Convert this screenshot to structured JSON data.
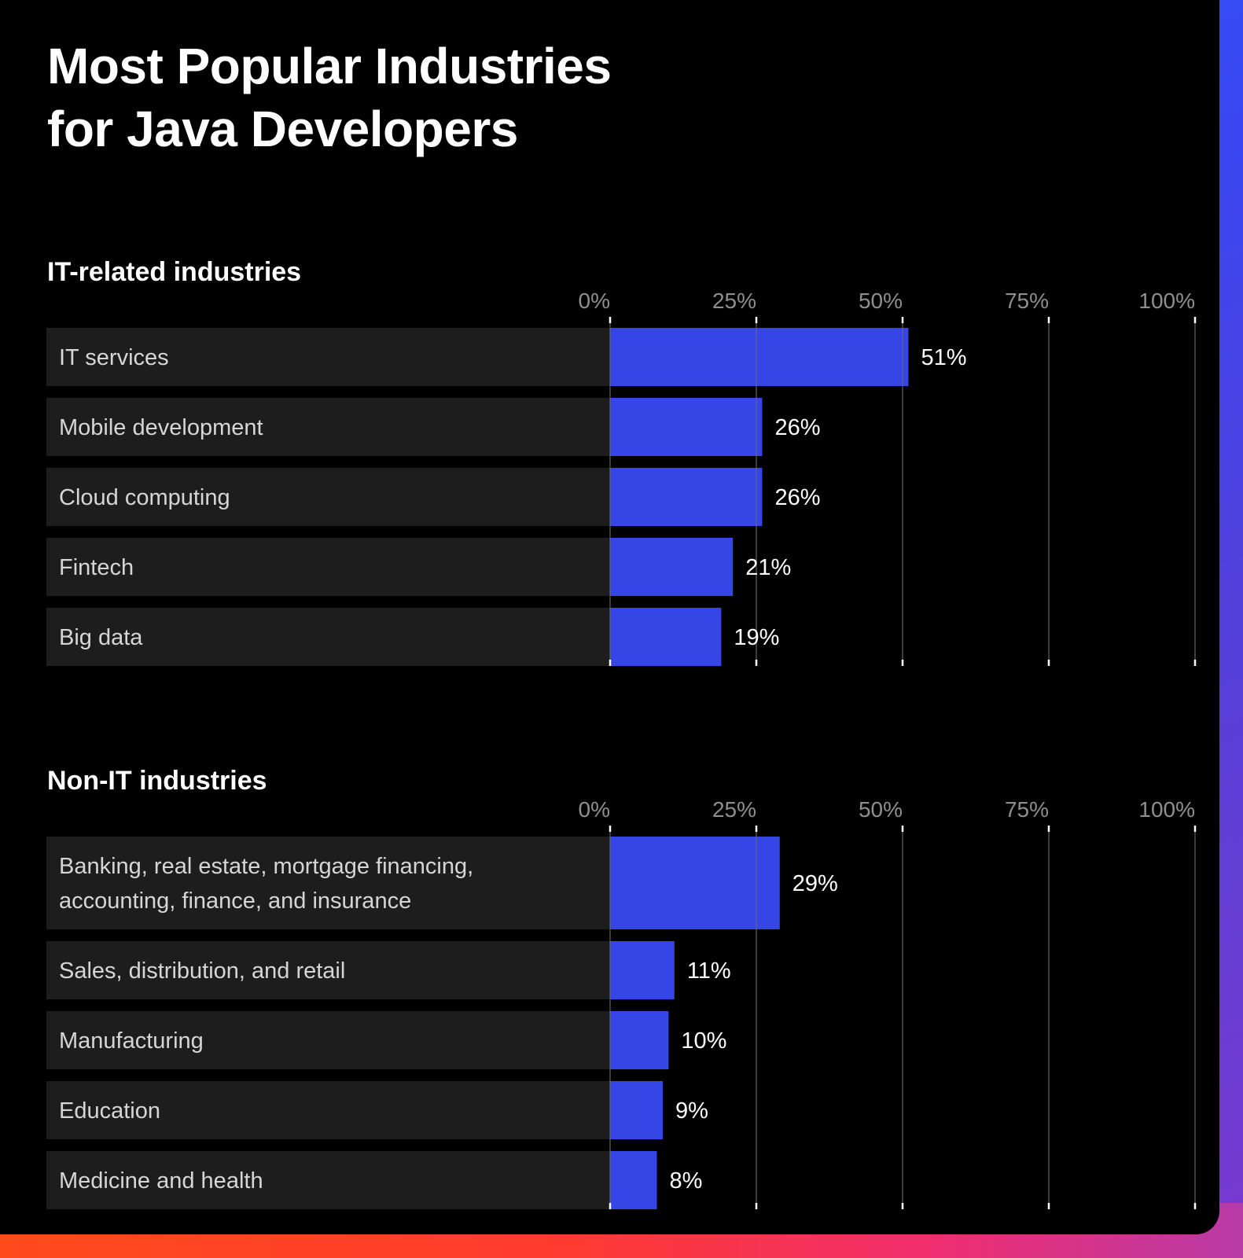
{
  "title_lines": [
    "Most Popular Industries",
    "for Java Developers"
  ],
  "colors": {
    "bar": "#3545e6",
    "row_bg": "#1d1d1d",
    "background": "#000000",
    "grid": "#6a6a6a"
  },
  "chart_data": [
    {
      "type": "bar",
      "orientation": "horizontal",
      "title": "IT-related industries",
      "categories": [
        [
          "IT services"
        ],
        [
          "Mobile development"
        ],
        [
          "Cloud computing"
        ],
        [
          "Fintech"
        ],
        [
          "Big data"
        ]
      ],
      "values": [
        51,
        26,
        26,
        21,
        19
      ],
      "value_labels": [
        "51%",
        "26%",
        "26%",
        "21%",
        "19%"
      ],
      "xlim": [
        0,
        100
      ],
      "xticks": [
        0,
        25,
        50,
        75,
        100
      ],
      "xtick_labels": [
        "0%",
        "25%",
        "50%",
        "75%",
        "100%"
      ],
      "grid": true,
      "legend": "none"
    },
    {
      "type": "bar",
      "orientation": "horizontal",
      "title": "Non-IT industries",
      "categories": [
        [
          "Banking, real estate, mortgage financing,",
          "accounting, finance, and insurance"
        ],
        [
          "Sales, distribution, and retail"
        ],
        [
          "Manufacturing"
        ],
        [
          "Education"
        ],
        [
          "Medicine and health"
        ]
      ],
      "values": [
        29,
        11,
        10,
        9,
        8
      ],
      "value_labels": [
        "29%",
        "11%",
        "10%",
        "9%",
        "8%"
      ],
      "xlim": [
        0,
        100
      ],
      "xticks": [
        0,
        25,
        50,
        75,
        100
      ],
      "xtick_labels": [
        "0%",
        "25%",
        "50%",
        "75%",
        "100%"
      ],
      "grid": true,
      "legend": "none"
    }
  ]
}
